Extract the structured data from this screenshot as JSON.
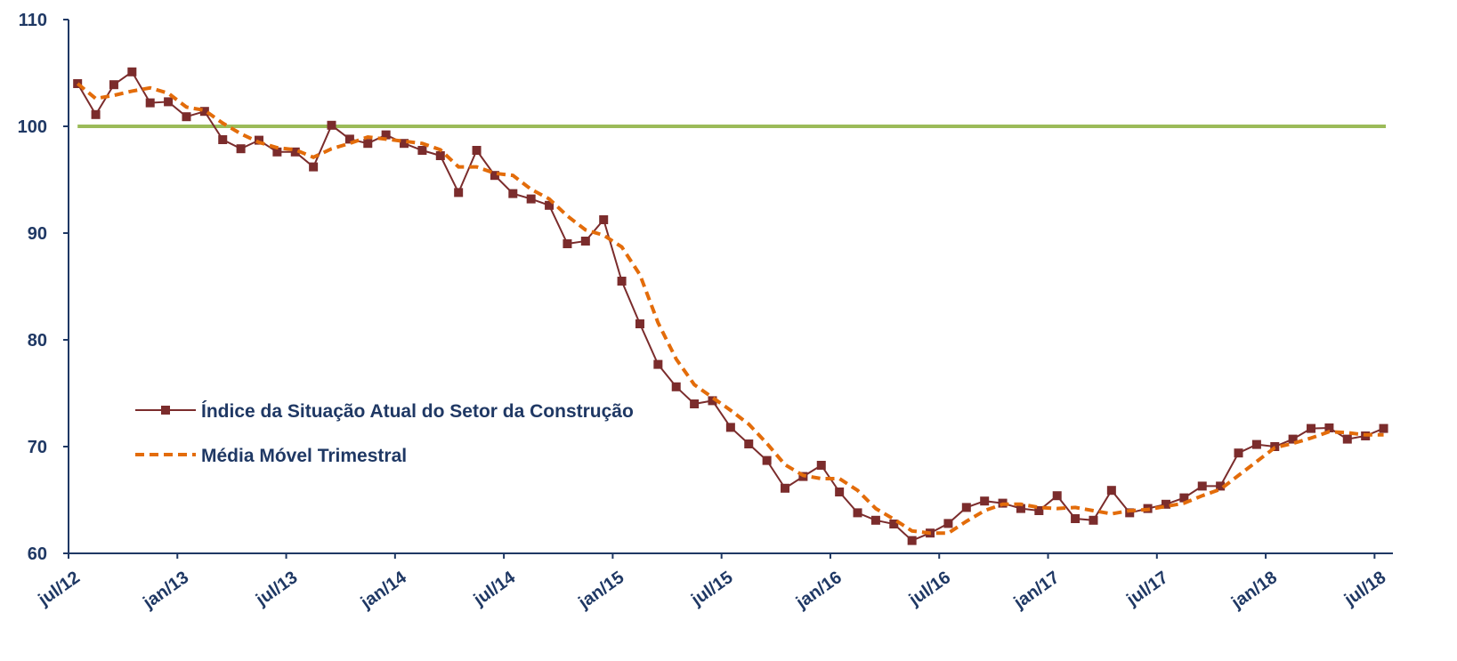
{
  "chart_data": {
    "type": "line",
    "categories": [
      "jul/12",
      null,
      null,
      null,
      null,
      null,
      "jan/13",
      null,
      null,
      null,
      null,
      null,
      "jul/13",
      null,
      null,
      null,
      null,
      null,
      "jan/14",
      null,
      null,
      null,
      null,
      null,
      "jul/14",
      null,
      null,
      null,
      null,
      null,
      "jan/15",
      null,
      null,
      null,
      null,
      null,
      "jul/15",
      null,
      null,
      null,
      null,
      null,
      "jan/16",
      null,
      null,
      null,
      null,
      null,
      "jul/16",
      null,
      null,
      null,
      null,
      null,
      "jan/17",
      null,
      null,
      null,
      null,
      null,
      "jul/17",
      null,
      null,
      null,
      null,
      null,
      "jan/18",
      null,
      null,
      null,
      null,
      null,
      "jul/18"
    ],
    "series": [
      {
        "name": "Índice da Situação Atual do Setor da Construção",
        "color": "#7b2c2c",
        "marker": "square",
        "values": [
          104.0,
          101.1,
          103.9,
          105.1,
          102.2,
          102.3,
          100.9,
          101.4,
          98.75,
          97.9,
          98.7,
          97.6,
          97.6,
          96.2,
          100.1,
          98.8,
          98.4,
          99.2,
          98.4,
          97.75,
          97.25,
          93.8,
          97.75,
          95.4,
          93.7,
          93.2,
          92.6,
          89.0,
          89.25,
          91.25,
          85.5,
          81.5,
          77.7,
          75.6,
          74.0,
          74.3,
          71.8,
          70.25,
          68.7,
          66.1,
          67.2,
          68.25,
          65.75,
          63.8,
          63.1,
          62.75,
          61.2,
          61.9,
          62.8,
          64.3,
          64.9,
          64.7,
          64.2,
          64.0,
          65.4,
          63.25,
          63.1,
          65.9,
          63.8,
          64.2,
          64.6,
          65.2,
          66.3,
          66.3,
          69.4,
          70.2,
          70.0,
          70.7,
          71.7,
          71.75,
          70.7,
          71.0,
          71.7
        ]
      },
      {
        "name": "Média Móvel Trimestral",
        "color": "#e36c0a",
        "dashed": true,
        "values": [
          104.0,
          102.6,
          102.9,
          103.3,
          103.6,
          103.1,
          101.8,
          101.5,
          100.3,
          99.3,
          98.5,
          98.0,
          97.8,
          97.1,
          97.9,
          98.4,
          99.0,
          98.8,
          98.6,
          98.4,
          97.8,
          96.2,
          96.2,
          95.6,
          95.4,
          94.1,
          93.2,
          91.6,
          90.3,
          89.8,
          88.7,
          86.1,
          81.6,
          78.2,
          75.8,
          74.6,
          73.4,
          72.1,
          70.3,
          68.3,
          67.3,
          67.0,
          67.0,
          65.9,
          64.2,
          63.2,
          62.1,
          61.9,
          61.9,
          63.0,
          64.0,
          64.6,
          64.6,
          64.3,
          64.2,
          64.3,
          64.0,
          63.7,
          64.0,
          64.1,
          64.4,
          64.7,
          65.4,
          66.0,
          67.3,
          68.6,
          69.9,
          70.3,
          70.8,
          71.4,
          71.3,
          71.1,
          71.1
        ]
      }
    ],
    "reference_line": {
      "value": 100,
      "color": "#9bbb59"
    },
    "ylim": [
      60,
      110
    ],
    "yticks": [
      60,
      70,
      80,
      90,
      100,
      110
    ],
    "grid": false,
    "legend": "left"
  }
}
